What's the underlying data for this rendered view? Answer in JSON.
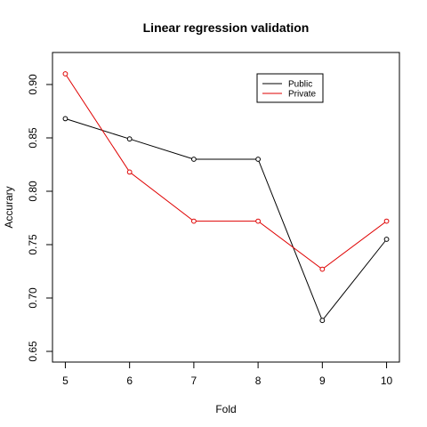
{
  "chart_data": {
    "type": "line",
    "title": "Linear regression validation",
    "xlabel": "Fold",
    "ylabel": "Accurary",
    "x": [
      5,
      6,
      7,
      8,
      9,
      10
    ],
    "xlim": [
      4.8,
      10.2
    ],
    "ylim": [
      0.64,
      0.93
    ],
    "x_ticks": [
      5,
      6,
      7,
      8,
      9,
      10
    ],
    "y_ticks": [
      0.65,
      0.7,
      0.75,
      0.8,
      0.85,
      0.9
    ],
    "grid": false,
    "legend_position": "top-right",
    "series": [
      {
        "name": "Public",
        "color": "#000000",
        "values": [
          0.868,
          0.849,
          0.83,
          0.83,
          0.679,
          0.755
        ]
      },
      {
        "name": "Private",
        "color": "#DF0000",
        "values": [
          0.91,
          0.818,
          0.772,
          0.772,
          0.727,
          0.772
        ]
      }
    ]
  }
}
